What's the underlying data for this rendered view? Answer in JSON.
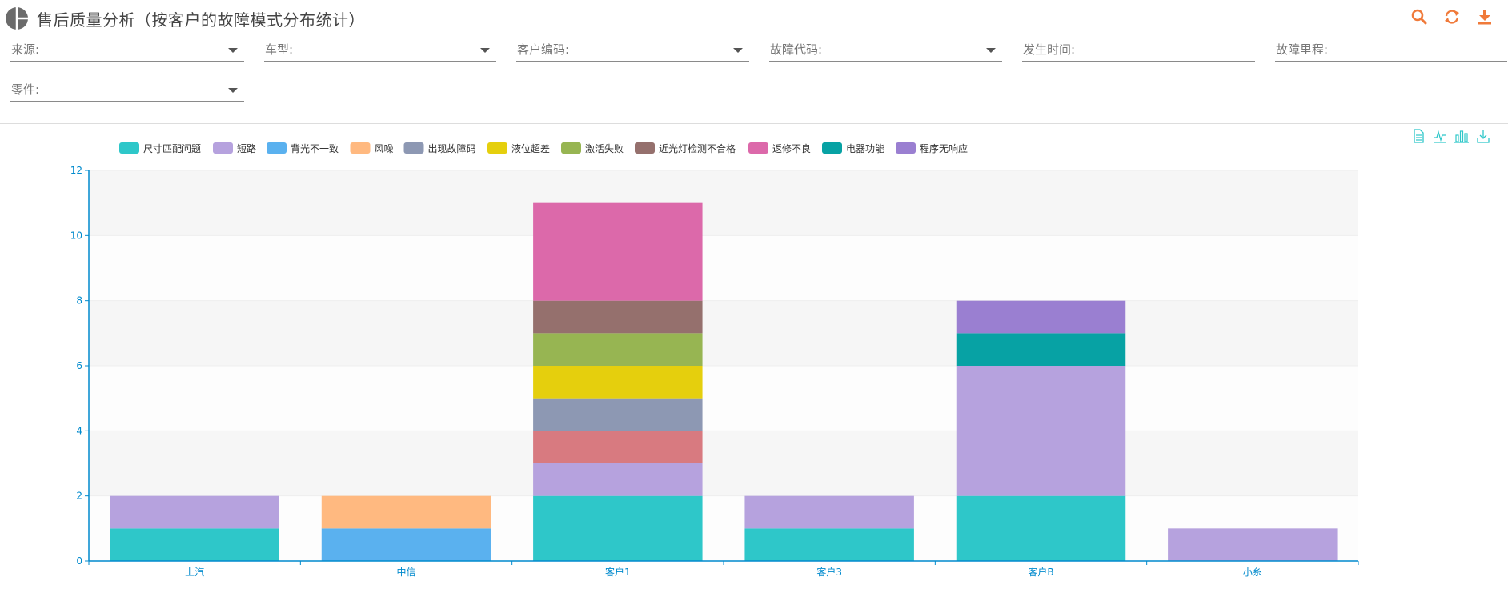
{
  "header": {
    "title": "售后质量分析（按客户的故障模式分布统计）",
    "icons": [
      "search-icon",
      "refresh-icon",
      "download-icon"
    ],
    "accent_color": "#f07a3a"
  },
  "filters": [
    {
      "label": "来源:",
      "has_dropdown": true
    },
    {
      "label": "车型:",
      "has_dropdown": true
    },
    {
      "label": "客户编码:",
      "has_dropdown": true
    },
    {
      "label": "故障代码:",
      "has_dropdown": true
    },
    {
      "label": "发生时间:",
      "has_dropdown": false
    },
    {
      "label": "故障里程:",
      "has_dropdown": false
    },
    {
      "label": "零件:",
      "has_dropdown": true
    }
  ],
  "toolbox": [
    "data-view-icon",
    "line-chart-icon",
    "bar-chart-icon",
    "save-image-icon"
  ],
  "chart_data": {
    "type": "bar",
    "stacked": true,
    "categories": [
      "上汽",
      "中信",
      "客户1",
      "客户3",
      "客户B",
      "小糸"
    ],
    "series": [
      {
        "name": "尺寸匹配问题",
        "color": "#2ec7c9",
        "values": [
          1,
          0,
          2,
          1,
          2,
          0
        ]
      },
      {
        "name": "短路",
        "color": "#b6a2de",
        "values": [
          1,
          0,
          1,
          1,
          4,
          1
        ]
      },
      {
        "name": "背光不一致",
        "color": "#5ab1ef",
        "values": [
          0,
          1,
          0,
          0,
          0,
          0
        ]
      },
      {
        "name": "风噪",
        "color": "#ffb980",
        "values": [
          0,
          1,
          0,
          0,
          0,
          0
        ]
      },
      {
        "name": "",
        "color": "#d87a80",
        "values": [
          0,
          0,
          1,
          0,
          0,
          0
        ]
      },
      {
        "name": "出现故障码",
        "color": "#8d98b3",
        "values": [
          0,
          0,
          1,
          0,
          0,
          0
        ]
      },
      {
        "name": "液位超差",
        "color": "#e5cf0d",
        "values": [
          0,
          0,
          1,
          0,
          0,
          0
        ]
      },
      {
        "name": "激活失败",
        "color": "#97b552",
        "values": [
          0,
          0,
          1,
          0,
          0,
          0
        ]
      },
      {
        "name": "近光灯检测不合格",
        "color": "#95706d",
        "values": [
          0,
          0,
          1,
          0,
          0,
          0
        ]
      },
      {
        "name": "返修不良",
        "color": "#dc69aa",
        "values": [
          0,
          0,
          3,
          0,
          0,
          0
        ]
      },
      {
        "name": "电器功能",
        "color": "#07a2a4",
        "values": [
          0,
          0,
          0,
          0,
          1,
          0
        ]
      },
      {
        "name": "程序无响应",
        "color": "#9a7fd1",
        "values": [
          0,
          0,
          0,
          0,
          1,
          0
        ]
      }
    ],
    "ylim": [
      0,
      12
    ],
    "yticks": [
      "0",
      "2",
      "4",
      "6",
      "8",
      "10",
      "12"
    ],
    "grid": true,
    "legend_position": "top-left",
    "axis_color": "#008acd"
  }
}
